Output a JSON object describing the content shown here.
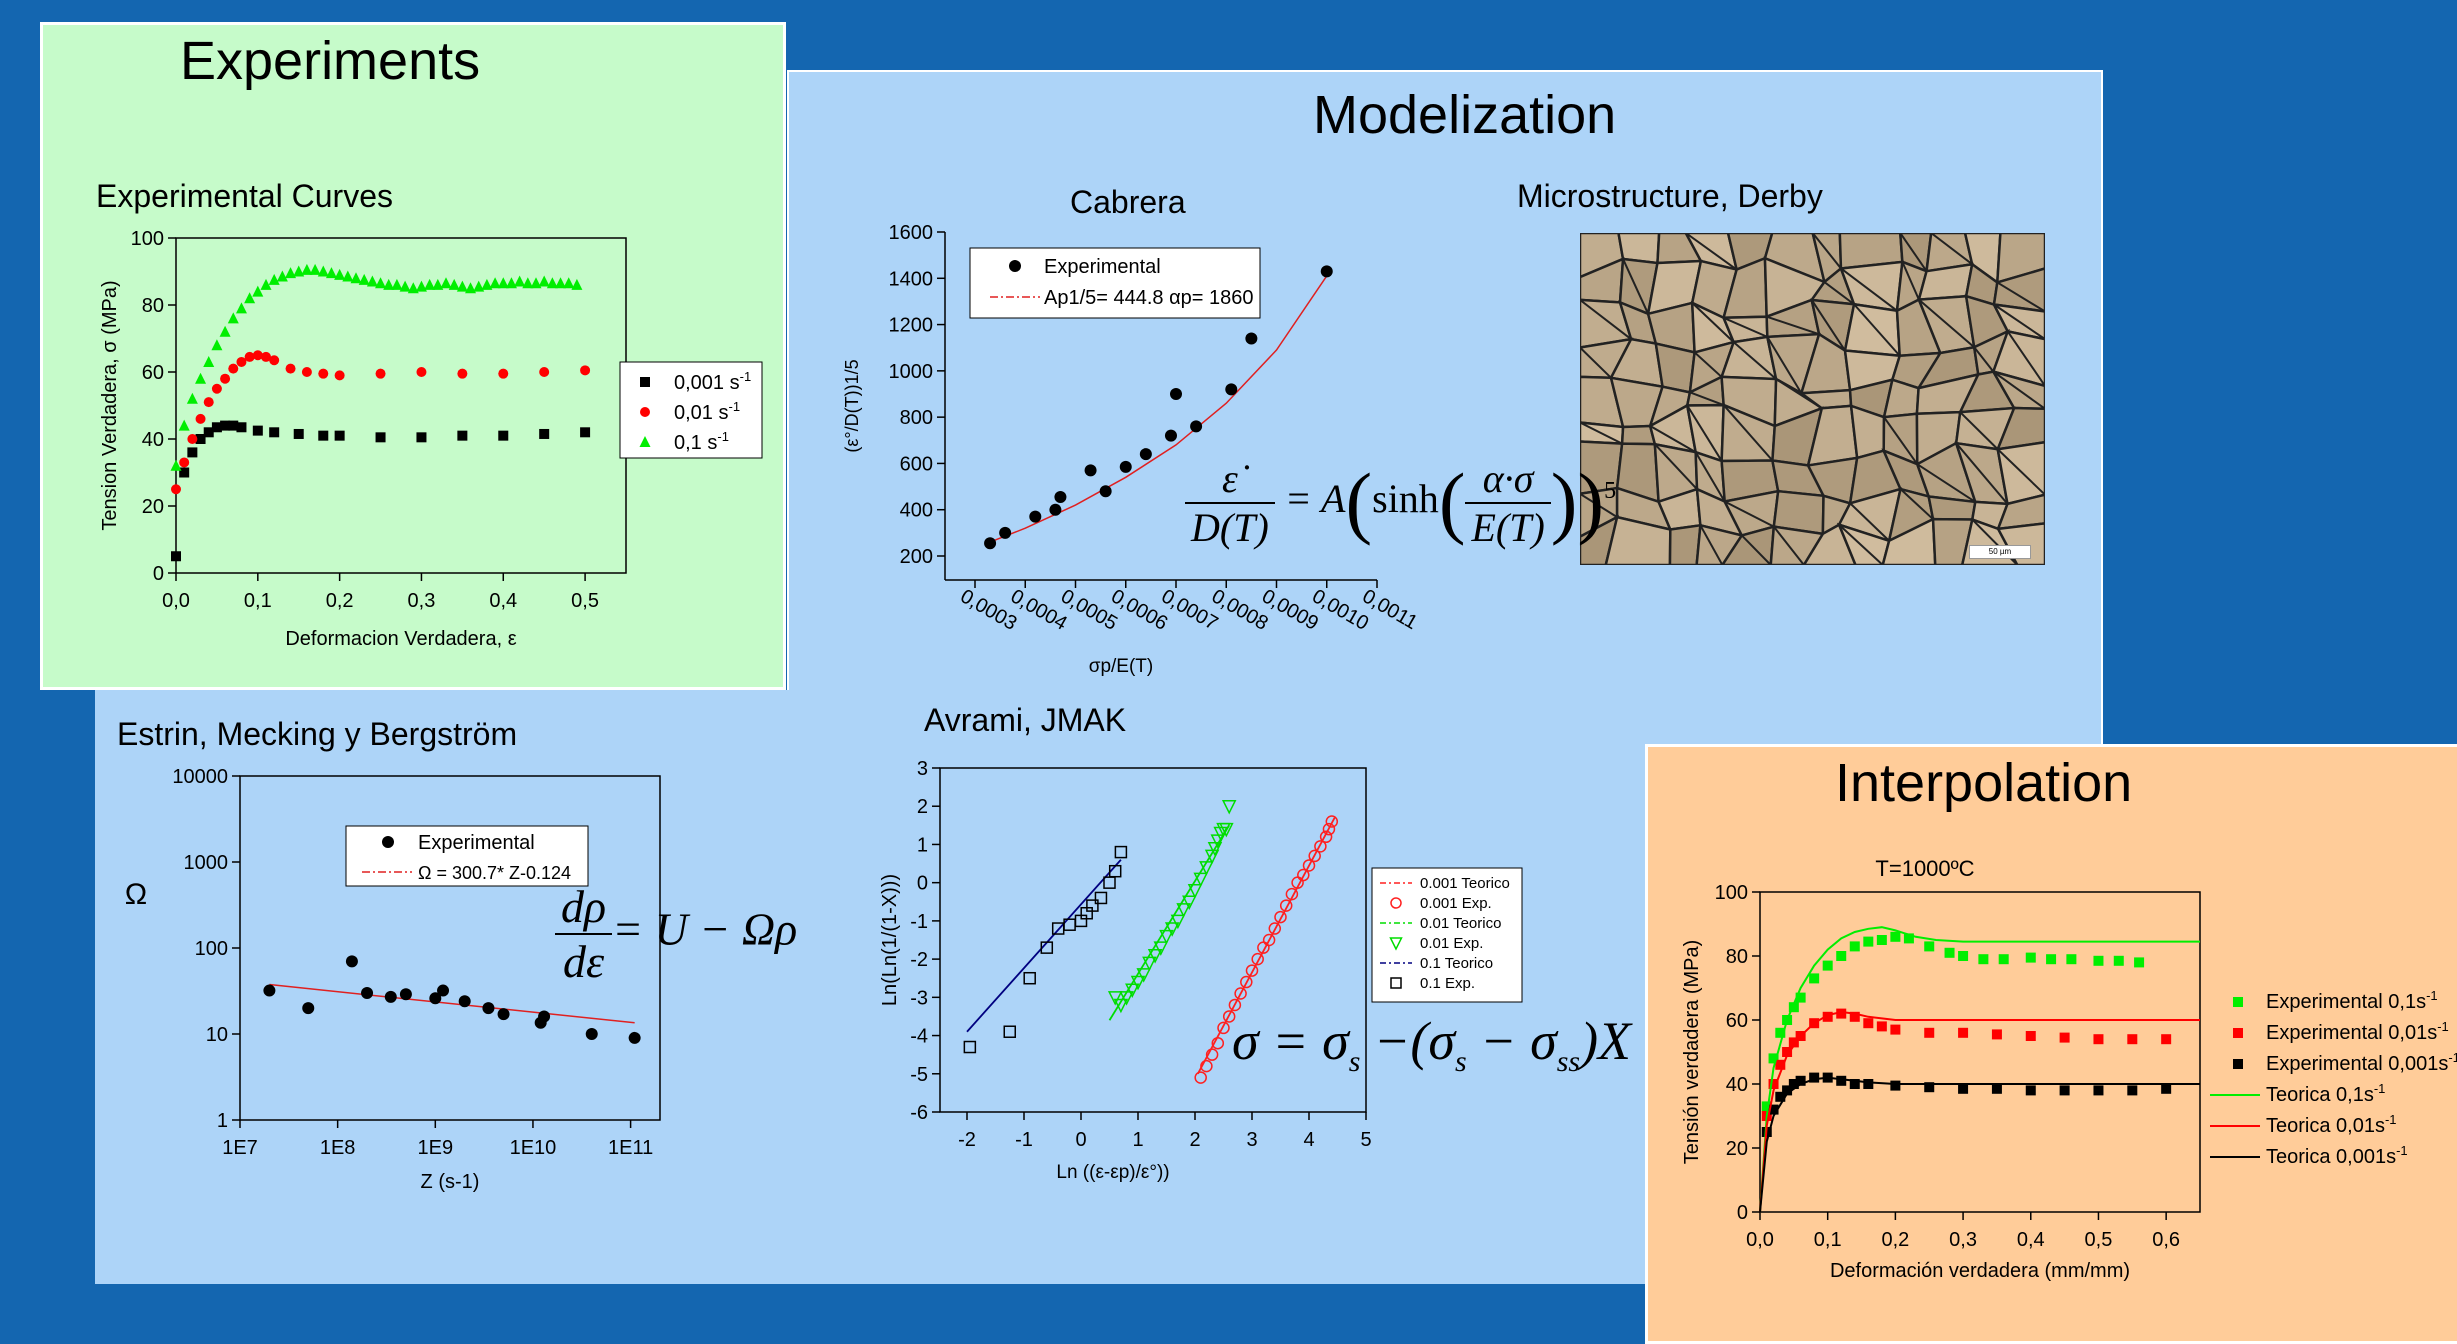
{
  "experiments": {
    "title": "Experiments",
    "chart_data": {
      "type": "scatter",
      "title": "Experimental Curves",
      "xlabel": "Deformacion Verdadera, ε",
      "ylabel": "Tension Verdadera, σ (MPa)",
      "xlim": [
        0,
        0.55
      ],
      "ylim": [
        0,
        100
      ],
      "xticks": [
        "0,0",
        "0,1",
        "0,2",
        "0,3",
        "0,4",
        "0,5"
      ],
      "yticks": [
        "0",
        "20",
        "40",
        "60",
        "80",
        "100"
      ],
      "legend_position": "right",
      "series": [
        {
          "name": "0,001 s",
          "sup": "-1",
          "color": "#000000",
          "marker": "square",
          "x": [
            0,
            0.01,
            0.02,
            0.03,
            0.04,
            0.05,
            0.06,
            0.07,
            0.08,
            0.1,
            0.12,
            0.15,
            0.18,
            0.2,
            0.25,
            0.3,
            0.35,
            0.4,
            0.45,
            0.5
          ],
          "y": [
            5,
            30,
            36,
            40,
            42,
            43.5,
            44,
            44,
            43.5,
            42.5,
            42,
            41.5,
            41,
            41,
            40.5,
            40.5,
            41,
            41,
            41.5,
            42
          ]
        },
        {
          "name": "0,01 s",
          "sup": "-1",
          "color": "#ff0000",
          "marker": "circle",
          "x": [
            0,
            0.01,
            0.02,
            0.03,
            0.04,
            0.05,
            0.06,
            0.07,
            0.08,
            0.09,
            0.1,
            0.11,
            0.12,
            0.14,
            0.16,
            0.18,
            0.2,
            0.25,
            0.3,
            0.35,
            0.4,
            0.45,
            0.5
          ],
          "y": [
            25,
            33,
            40,
            46,
            51,
            55,
            58,
            61,
            63,
            64.5,
            65,
            64.5,
            63.5,
            61,
            60,
            59.5,
            59,
            59.5,
            60,
            59.5,
            59.5,
            60,
            60.5
          ]
        },
        {
          "name": "0,1 s",
          "sup": "-1",
          "color": "#00ee00",
          "marker": "triangle",
          "x": [
            0,
            0.01,
            0.02,
            0.03,
            0.04,
            0.05,
            0.06,
            0.07,
            0.08,
            0.09,
            0.1,
            0.11,
            0.12,
            0.13,
            0.14,
            0.15,
            0.16,
            0.17,
            0.18,
            0.19,
            0.2,
            0.21,
            0.22,
            0.23,
            0.24,
            0.25,
            0.26,
            0.27,
            0.28,
            0.29,
            0.3,
            0.31,
            0.32,
            0.33,
            0.34,
            0.35,
            0.36,
            0.37,
            0.38,
            0.39,
            0.4,
            0.41,
            0.42,
            0.43,
            0.44,
            0.45,
            0.46,
            0.47,
            0.48,
            0.49
          ],
          "y": [
            32,
            44,
            52,
            58,
            63,
            68,
            72,
            76,
            79,
            82,
            84,
            86,
            87.5,
            88.5,
            89.5,
            90,
            90.5,
            90.5,
            90,
            89.5,
            89,
            88.5,
            88,
            87.5,
            87,
            86.5,
            86,
            86,
            85.5,
            85,
            85.5,
            86,
            86,
            86.5,
            86,
            85.5,
            85,
            85.5,
            86,
            86.5,
            86.5,
            86.5,
            87,
            86.5,
            86.5,
            87,
            86.5,
            86.5,
            86.5,
            86
          ]
        }
      ]
    }
  },
  "modelization": {
    "title": "Modelization",
    "cabrera": {
      "chart_data": {
        "type": "scatter",
        "title": "Cabrera",
        "xlabel": "σp/E(T)",
        "ylabel": "(ε°/D(T))1/5",
        "xlim": [
          0.0003,
          0.0011
        ],
        "ylim": [
          200,
          1600
        ],
        "xticks": [
          "0,0003",
          "0,0004",
          "0,0005",
          "0,0006",
          "0,0007",
          "0,0008",
          "0,0009",
          "0,0010",
          "0,0011"
        ],
        "yticks": [
          "200",
          "400",
          "600",
          "800",
          "1000",
          "1200",
          "1400",
          "1600"
        ],
        "legend": [
          "Experimental",
          "Ap1/5= 444.8 αp= 1860"
        ],
        "series": [
          {
            "name": "Experimental",
            "color": "#000000",
            "x": [
              0.00033,
              0.00036,
              0.00042,
              0.00046,
              0.00047,
              0.00053,
              0.00056,
              0.0006,
              0.00064,
              0.00069,
              0.0007,
              0.00074,
              0.00081,
              0.00085,
              0.001
            ],
            "y": [
              255,
              300,
              370,
              400,
              455,
              570,
              480,
              585,
              640,
              720,
              900,
              760,
              920,
              1140,
              1430
            ]
          },
          {
            "name": "Ap1/5= 444.8 αp= 1860",
            "color": "#e02020",
            "fit": true,
            "x": [
              0.00033,
              0.0004,
              0.0005,
              0.0006,
              0.0007,
              0.0008,
              0.0009,
              0.001
            ],
            "y": [
              260,
              320,
              420,
              540,
              680,
              860,
              1090,
              1410
            ]
          }
        ]
      },
      "equation": {
        "num": "ε̇",
        "den": "D(T)",
        "eq": "= A",
        "sinh": "sinh",
        "inner_num": "α·σ",
        "inner_den": "E(T)",
        "exp": "5"
      }
    },
    "micro": {
      "title": "Microstructure, Derby",
      "scale_label": "50 µm"
    },
    "avrami": {
      "chart_data": {
        "type": "scatter",
        "title": "Avrami, JMAK",
        "xlabel": "Ln ((ε-εp)/ε°))",
        "ylabel": "Ln(Ln(1/(1-X)))",
        "xlim": [
          -3,
          5
        ],
        "ylim": [
          -6,
          3
        ],
        "xticks": [
          "-2",
          "-1",
          "0",
          "1",
          "2",
          "3",
          "4",
          "5"
        ],
        "yticks": [
          "-6",
          "-5",
          "-4",
          "-3",
          "-2",
          "-1",
          "0",
          "1",
          "2",
          "3"
        ],
        "legend": [
          "0.001 Teorico",
          "0.001 Exp.",
          "0.01 Teorico",
          "0.01 Exp.",
          "0.1 Teorico",
          "0.1 Exp."
        ],
        "series": [
          {
            "name": "0.001 Teorico",
            "color": "#ff2020",
            "line": true,
            "x": [
              2.05,
              4.45
            ],
            "y": [
              -5.0,
              1.7
            ]
          },
          {
            "name": "0.001 Exp.",
            "color": "#ff2020",
            "marker": "circle",
            "x": [
              2.1,
              2.2,
              2.3,
              2.4,
              2.5,
              2.6,
              2.7,
              2.8,
              2.9,
              3.0,
              3.1,
              3.2,
              3.3,
              3.4,
              3.5,
              3.6,
              3.7,
              3.8,
              3.9,
              4.0,
              4.1,
              4.2,
              4.3,
              4.35,
              4.4
            ],
            "y": [
              -5.1,
              -4.8,
              -4.5,
              -4.2,
              -3.8,
              -3.5,
              -3.2,
              -2.9,
              -2.6,
              -2.3,
              -2.0,
              -1.7,
              -1.5,
              -1.2,
              -0.9,
              -0.6,
              -0.3,
              0.0,
              0.2,
              0.45,
              0.7,
              0.95,
              1.2,
              1.4,
              1.6
            ]
          },
          {
            "name": "0.01 Teorico",
            "color": "#00dd00",
            "line": true,
            "x": [
              0.5,
              2.6
            ],
            "y": [
              -3.6,
              1.5
            ]
          },
          {
            "name": "0.01 Exp.",
            "color": "#00dd00",
            "marker": "triangle",
            "x": [
              0.6,
              0.7,
              0.8,
              0.9,
              1.0,
              1.1,
              1.2,
              1.3,
              1.4,
              1.5,
              1.6,
              1.7,
              1.8,
              1.9,
              2.0,
              2.1,
              2.2,
              2.3,
              2.35,
              2.4,
              2.45,
              2.5,
              2.55,
              2.6
            ],
            "y": [
              -3.0,
              -3.2,
              -3.0,
              -2.8,
              -2.6,
              -2.4,
              -2.1,
              -1.9,
              -1.7,
              -1.4,
              -1.2,
              -1.0,
              -0.7,
              -0.5,
              -0.2,
              0.1,
              0.4,
              0.7,
              0.9,
              1.1,
              1.3,
              1.4,
              1.4,
              2.0
            ]
          },
          {
            "name": "0.1 Teorico",
            "color": "#000080",
            "line": true,
            "x": [
              -2.0,
              0.7
            ],
            "y": [
              -3.9,
              0.6
            ]
          },
          {
            "name": "0.1 Exp.",
            "color": "#000000",
            "marker": "square",
            "x": [
              -1.95,
              -1.25,
              -0.9,
              -0.6,
              -0.4,
              -0.2,
              0.0,
              0.1,
              0.2,
              0.35,
              0.5,
              0.6,
              0.7
            ],
            "y": [
              -4.3,
              -3.9,
              -2.5,
              -1.7,
              -1.2,
              -1.1,
              -1.0,
              -0.8,
              -0.6,
              -0.4,
              0.0,
              0.3,
              0.8
            ]
          }
        ]
      },
      "equation": {
        "lhs": "σ = σ",
        "s1": "s",
        "mid": " −(σ",
        "s2": "s",
        "minus": " − σ",
        "ss": "ss",
        "end": ")X"
      }
    },
    "estrin": {
      "chart_data": {
        "type": "scatter",
        "title": "Estrin, Mecking y Bergström",
        "xlabel": "Z (s-1)",
        "ylabel": "Ω",
        "xscale": "log",
        "yscale": "log",
        "xlim": [
          10000000.0,
          200000000000.0
        ],
        "ylim": [
          1,
          10000
        ],
        "xticks": [
          "1E7",
          "1E8",
          "1E9",
          "1E10",
          "1E11"
        ],
        "yticks": [
          "1",
          "10",
          "100",
          "1000",
          "10000"
        ],
        "legend": [
          "Experimental",
          "Ω = 300.7* Z-0.124"
        ],
        "series": [
          {
            "name": "Experimental",
            "color": "#000000",
            "x": [
              20000000.0,
              50000000.0,
              140000000.0,
              200000000.0,
              350000000.0,
              500000000.0,
              1000000000.0,
              1200000000.0,
              2000000000.0,
              3500000000.0,
              5000000000.0,
              12000000000.0,
              13000000000.0,
              40000000000.0,
              110000000000.0
            ],
            "y": [
              32,
              20,
              70,
              30,
              27,
              29,
              26,
              32,
              24,
              20,
              17,
              13.5,
              16,
              10,
              9
            ]
          },
          {
            "name": "Ω = 300.7* Z-0.124",
            "color": "#e02020",
            "fit": true,
            "x": [
              20000000.0,
              110000000000.0
            ],
            "y": [
              37.6,
              13.5
            ]
          }
        ]
      },
      "equation": {
        "num": "dρ",
        "den": "dε",
        "rhs": "= U − Ωρ"
      }
    }
  },
  "interpolation": {
    "title": "Interpolation",
    "chart_data": {
      "type": "scatter",
      "title": "T=1000ºC",
      "xlabel": "Deformación verdadera (mm/mm)",
      "ylabel": "Tensión verdadera (MPa)",
      "xlim": [
        0,
        0.65
      ],
      "ylim": [
        0,
        100
      ],
      "xticks": [
        "0,0",
        "0,1",
        "0,2",
        "0,3",
        "0,4",
        "0,5",
        "0,6"
      ],
      "yticks": [
        "0",
        "20",
        "40",
        "60",
        "80",
        "100"
      ],
      "legend": [
        "Experimental 0,1s-1",
        "Experimental 0,01s-1",
        "Experimental 0,001s-1",
        "Teorica 0,1s-1",
        "Teorica 0,01s-1",
        "Teorica 0,001s-1"
      ],
      "series": [
        {
          "name": "Experimental 0,1s",
          "sup": "-1",
          "color": "#00ee00",
          "marker": "square",
          "x": [
            0.01,
            0.02,
            0.03,
            0.04,
            0.05,
            0.06,
            0.08,
            0.1,
            0.12,
            0.14,
            0.16,
            0.18,
            0.2,
            0.22,
            0.25,
            0.28,
            0.3,
            0.33,
            0.36,
            0.4,
            0.43,
            0.46,
            0.5,
            0.53,
            0.56
          ],
          "y": [
            33,
            48,
            56,
            60,
            64,
            67,
            73,
            77,
            80,
            83,
            84.5,
            85,
            86,
            85.5,
            83,
            81,
            80,
            79,
            79,
            79.5,
            79,
            79,
            78.5,
            78.5,
            78
          ]
        },
        {
          "name": "Experimental 0,01s",
          "sup": "-1",
          "color": "#ff0000",
          "marker": "square",
          "x": [
            0.01,
            0.02,
            0.03,
            0.04,
            0.05,
            0.06,
            0.08,
            0.1,
            0.12,
            0.14,
            0.16,
            0.18,
            0.2,
            0.25,
            0.3,
            0.35,
            0.4,
            0.45,
            0.5,
            0.55,
            0.6
          ],
          "y": [
            30,
            40,
            46,
            50,
            53,
            55,
            59,
            61,
            62,
            61,
            59,
            58,
            57,
            56,
            56,
            55.5,
            55,
            54.5,
            54,
            54,
            54
          ]
        },
        {
          "name": "Experimental 0,001s",
          "sup": "-1",
          "color": "#000000",
          "marker": "square",
          "x": [
            0.01,
            0.02,
            0.03,
            0.04,
            0.05,
            0.06,
            0.08,
            0.1,
            0.12,
            0.14,
            0.16,
            0.2,
            0.25,
            0.3,
            0.35,
            0.4,
            0.45,
            0.5,
            0.55,
            0.6
          ],
          "y": [
            25,
            32,
            36,
            38,
            40,
            41,
            42,
            42,
            41,
            40,
            40,
            39.5,
            39,
            38.5,
            38.5,
            38,
            38,
            38,
            38,
            38.5
          ]
        },
        {
          "name": "Teorica 0,1s",
          "sup": "-1",
          "color": "#00ee00",
          "line": true,
          "x": [
            0,
            0.01,
            0.02,
            0.04,
            0.06,
            0.08,
            0.1,
            0.12,
            0.14,
            0.16,
            0.18,
            0.2,
            0.23,
            0.26,
            0.3,
            0.35,
            0.4,
            0.5,
            0.65
          ],
          "y": [
            0,
            30,
            45,
            60,
            70,
            77,
            82,
            85.5,
            87.5,
            88.5,
            89,
            88,
            86,
            85,
            84.5,
            84.5,
            84.5,
            84.5,
            84.5
          ]
        },
        {
          "name": "Teorica 0,01s",
          "sup": "-1",
          "color": "#ff0000",
          "line": true,
          "x": [
            0,
            0.01,
            0.02,
            0.04,
            0.06,
            0.08,
            0.1,
            0.12,
            0.14,
            0.16,
            0.18,
            0.2,
            0.25,
            0.3,
            0.65
          ],
          "y": [
            0,
            27,
            38,
            49,
            55,
            59,
            61.5,
            62.5,
            62,
            61,
            60.5,
            60,
            60,
            60,
            60
          ]
        },
        {
          "name": "Teorica 0,001s",
          "sup": "-1",
          "color": "#000000",
          "line": true,
          "x": [
            0,
            0.01,
            0.02,
            0.04,
            0.06,
            0.08,
            0.1,
            0.12,
            0.14,
            0.16,
            0.2,
            0.3,
            0.65
          ],
          "y": [
            0,
            22,
            30,
            37,
            40,
            41.5,
            42,
            41.5,
            41,
            40.5,
            40,
            40,
            40
          ]
        }
      ]
    }
  }
}
